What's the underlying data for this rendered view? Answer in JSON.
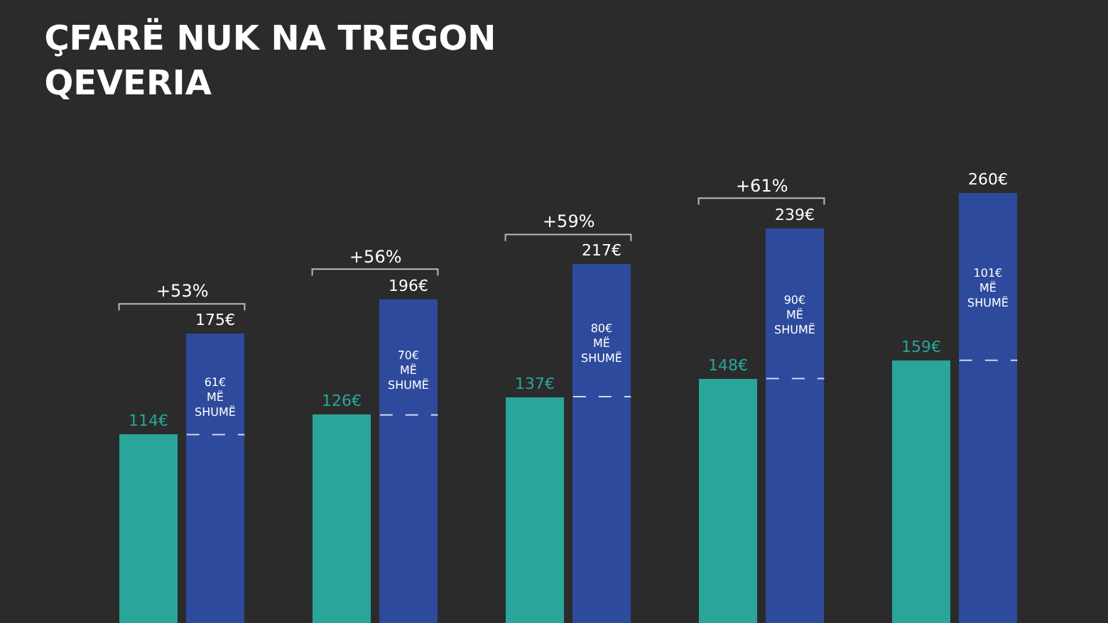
{
  "chart_data": {
    "type": "bar",
    "title": "ÇFARË NUK NA TREGON\nQEVERIA",
    "categories": [
      null,
      null,
      null,
      null,
      null
    ],
    "series": [
      {
        "color": "#2aa59a",
        "values": [
          114,
          126,
          137,
          148,
          159
        ],
        "value_labels": [
          "114€",
          "126€",
          "137€",
          "148€",
          "159€"
        ]
      },
      {
        "color": "#2e4a9c",
        "values": [
          175,
          196,
          217,
          239,
          260
        ],
        "value_labels": [
          "175€",
          "196€",
          "217€",
          "239€",
          "260€"
        ]
      }
    ],
    "annotations": [
      "61€\nMË\nSHUMË",
      "70€\nMË\nSHUMË",
      "80€\nMË\nSHUMË",
      "90€\nMË\nSHUMË",
      "101€\nMË\nSHUMË",
      "+53%",
      "+56%",
      "+59%",
      "+61%"
    ],
    "grid": false
  }
}
